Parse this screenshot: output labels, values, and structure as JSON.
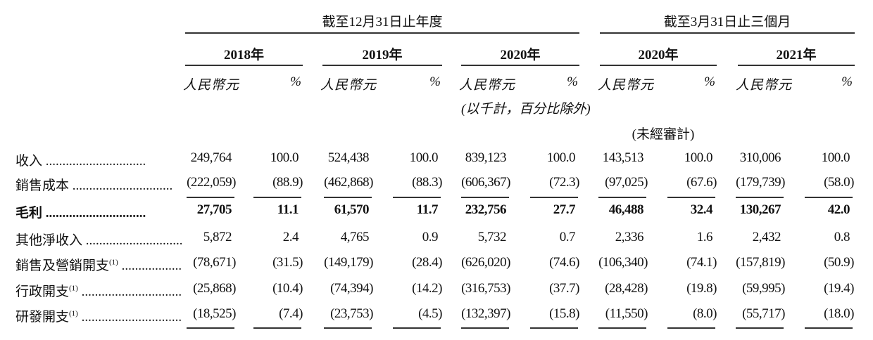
{
  "header": {
    "group1": "截至12月31日止年度",
    "group2": "截至3月31日止三個月",
    "years": [
      "2018年",
      "2019年",
      "2020年",
      "2020年",
      "2021年"
    ],
    "currency": "人民幣元",
    "percent": "%",
    "unit_note": "(以千計，百分比除外)",
    "unaudited": "(未經審計)"
  },
  "rows": [
    {
      "label": "收入",
      "sup": "",
      "bold": false,
      "values": [
        "249,764",
        "100.0",
        "524,438",
        "100.0",
        "839,123",
        "100.0",
        "143,513",
        "100.0",
        "310,006",
        "100.0"
      ]
    },
    {
      "label": "銷售成本",
      "sup": "",
      "bold": false,
      "values": [
        "(222,059)",
        "(88.9)",
        "(462,868)",
        "(88.3)",
        "(606,367)",
        "(72.3)",
        "(97,025)",
        "(67.6)",
        "(179,739)",
        "(58.0)"
      ]
    },
    {
      "label": "毛利",
      "sup": "",
      "bold": true,
      "values": [
        "27,705",
        "11.1",
        "61,570",
        "11.7",
        "232,756",
        "27.7",
        "46,488",
        "32.4",
        "130,267",
        "42.0"
      ]
    },
    {
      "label": "其他淨收入",
      "sup": "",
      "bold": false,
      "values": [
        "5,872",
        "2.4",
        "4,765",
        "0.9",
        "5,732",
        "0.7",
        "2,336",
        "1.6",
        "2,432",
        "0.8"
      ]
    },
    {
      "label": "銷售及營銷開支",
      "sup": "(1)",
      "bold": false,
      "values": [
        "(78,671)",
        "(31.5)",
        "(149,179)",
        "(28.4)",
        "(626,020)",
        "(74.6)",
        "(106,340)",
        "(74.1)",
        "(157,819)",
        "(50.9)"
      ]
    },
    {
      "label": "行政開支",
      "sup": "(1)",
      "bold": false,
      "values": [
        "(25,868)",
        "(10.4)",
        "(74,394)",
        "(14.2)",
        "(316,753)",
        "(37.7)",
        "(28,428)",
        "(19.8)",
        "(59,995)",
        "(19.4)"
      ]
    },
    {
      "label": "研發開支",
      "sup": "(1)",
      "bold": false,
      "values": [
        "(18,525)",
        "(7.4)",
        "(23,753)",
        "(4.5)",
        "(132,397)",
        "(15.8)",
        "(11,550)",
        "(8.0)",
        "(55,717)",
        "(18.0)"
      ]
    }
  ]
}
